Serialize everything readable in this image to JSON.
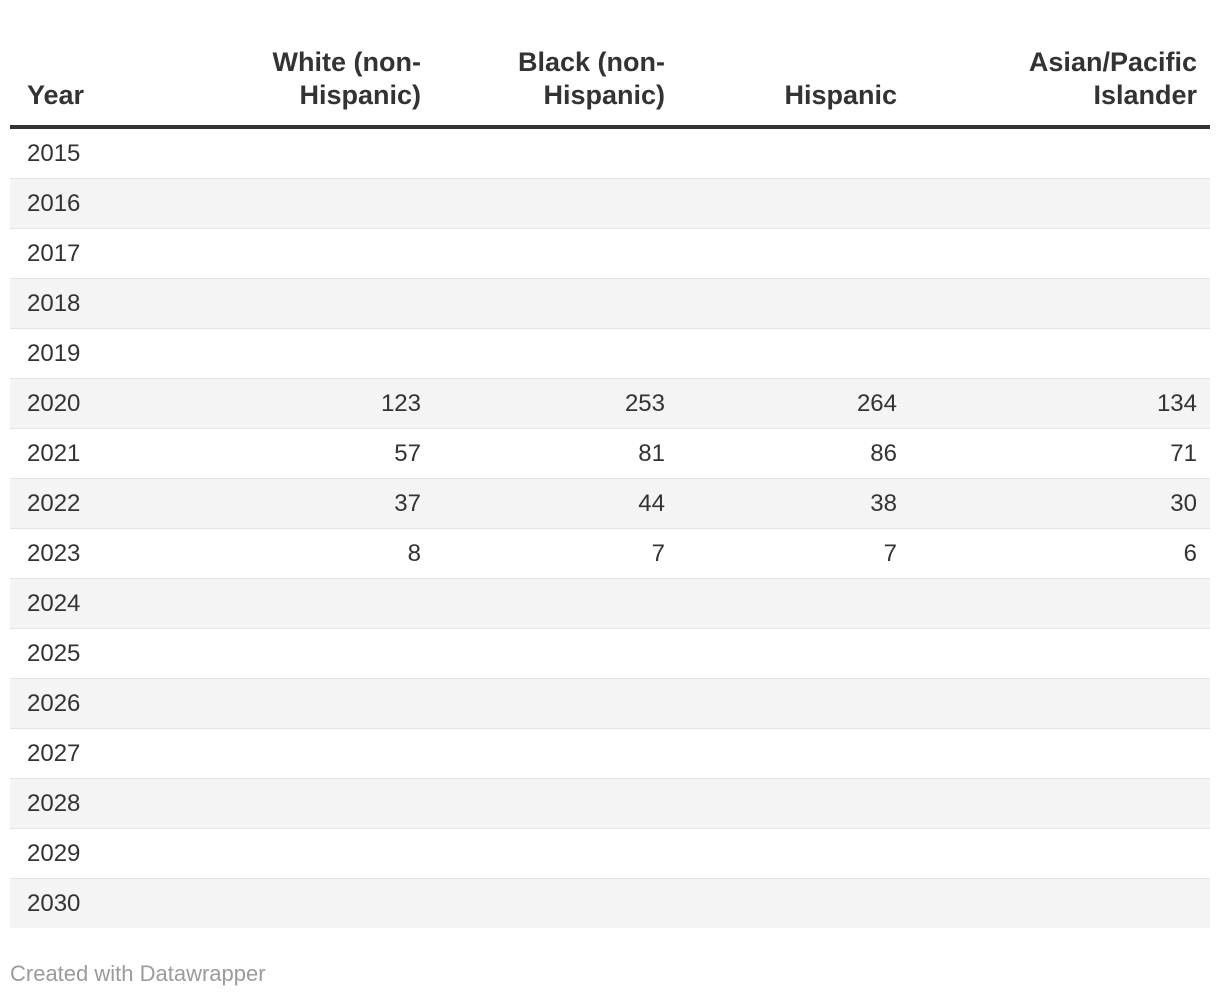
{
  "chart_data": {
    "type": "table",
    "title": "",
    "columns": [
      "Year",
      "White (non-Hispanic)",
      "Black (non-Hispanic)",
      "Hispanic",
      "Asian/Pacific Islander"
    ],
    "categories": [
      "2015",
      "2016",
      "2017",
      "2018",
      "2019",
      "2020",
      "2021",
      "2022",
      "2023",
      "2024",
      "2025",
      "2026",
      "2027",
      "2028",
      "2029",
      "2030"
    ],
    "series": [
      {
        "name": "White (non-Hispanic)",
        "values": [
          null,
          null,
          null,
          null,
          null,
          123,
          57,
          37,
          8,
          null,
          null,
          null,
          null,
          null,
          null,
          null
        ]
      },
      {
        "name": "Black (non-Hispanic)",
        "values": [
          null,
          null,
          null,
          null,
          null,
          253,
          81,
          44,
          7,
          null,
          null,
          null,
          null,
          null,
          null,
          null
        ]
      },
      {
        "name": "Hispanic",
        "values": [
          null,
          null,
          null,
          null,
          null,
          264,
          86,
          38,
          7,
          null,
          null,
          null,
          null,
          null,
          null,
          null
        ]
      },
      {
        "name": "Asian/Pacific Islander",
        "values": [
          null,
          null,
          null,
          null,
          null,
          134,
          71,
          30,
          6,
          null,
          null,
          null,
          null,
          null,
          null,
          null
        ]
      }
    ],
    "layout_hints": {
      "first_column_align": "left",
      "value_columns_align": "right",
      "striped_rows": true,
      "grid": "horizontal-only"
    }
  },
  "footer": {
    "credit": "Created with Datawrapper"
  },
  "colors": {
    "background": "#ffffff",
    "text": "#333333",
    "header_border": "#333333",
    "row_border": "#e4e4e4",
    "row_stripe": "#f4f4f4",
    "credit_text": "#9b9b9b"
  }
}
